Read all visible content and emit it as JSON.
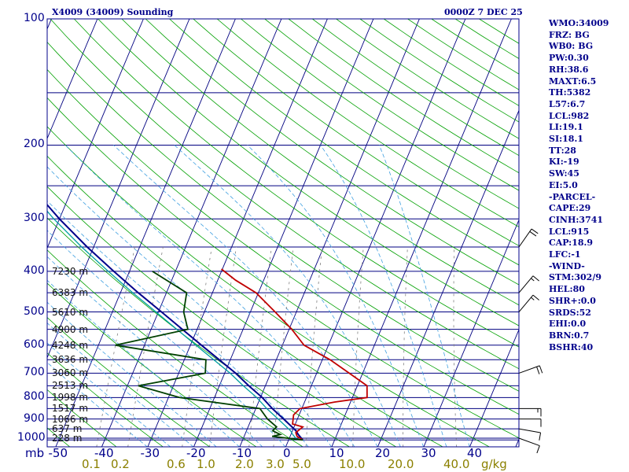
{
  "header": {
    "title": "X4009 (34009) Sounding",
    "datetime": "0000Z  7 DEC 25"
  },
  "indices": [
    "WMO:34009",
    "FRZ: BG",
    "WB0: BG",
    "PW:0.30",
    "RH:38.6",
    "MAXT:6.5",
    "TH:5382",
    "L57:6.7",
    "LCL:982",
    "LI:19.1",
    "SI:18.1",
    "TT:28",
    "KI:-19",
    "SW:45",
    "EI:5.0",
    "-PARCEL-",
    "CAPE:29",
    "CINH:3741",
    "LCL:915",
    "CAP:18.9",
    "LFC:-1",
    "-WIND-",
    "STM:302/9",
    "HEL:80",
    "SHR+:0.0",
    "SRDS:52",
    "EHI:0.0",
    "BRN:0.7",
    "BSHR:40"
  ],
  "chart_data": {
    "type": "line",
    "subtype": "skew-T log-p sounding",
    "x_axis": {
      "label": "mb",
      "ticks": [
        -50,
        -40,
        -30,
        -20,
        -10,
        0,
        10,
        20,
        30,
        40
      ],
      "range": [
        -50,
        50
      ]
    },
    "y_axis": {
      "scale": "log",
      "ticks": [
        100,
        200,
        300,
        400,
        500,
        600,
        700,
        800,
        900,
        1000
      ],
      "range": [
        1000,
        100
      ]
    },
    "mixing_ratio_axis": {
      "unit": "g/kg",
      "ticks": [
        "0.1",
        "0.2",
        "0.6",
        "1.0",
        "2.0",
        "3.0",
        "5.0",
        "10.0",
        "20.0",
        "40.0"
      ]
    },
    "height_labels": [
      {
        "p": 400,
        "text": "7230 m"
      },
      {
        "p": 450,
        "text": "6383 m"
      },
      {
        "p": 500,
        "text": "5610 m"
      },
      {
        "p": 550,
        "text": "4900 m"
      },
      {
        "p": 600,
        "text": "4248 m"
      },
      {
        "p": 650,
        "text": "3636 m"
      },
      {
        "p": 700,
        "text": "3060 m"
      },
      {
        "p": 750,
        "text": "2513 m"
      },
      {
        "p": 800,
        "text": "1998 m"
      },
      {
        "p": 850,
        "text": "1517 m"
      },
      {
        "p": 900,
        "text": "1066 m"
      },
      {
        "p": 950,
        "text": "637 m"
      },
      {
        "p": 1000,
        "text": "228 m"
      }
    ],
    "temperature": [
      [
        1010,
        3.1
      ],
      [
        990,
        1.5
      ],
      [
        970,
        0.9
      ],
      [
        940,
        1.9
      ],
      [
        925,
        -0.6
      ],
      [
        880,
        -1.2
      ],
      [
        850,
        -0.4
      ],
      [
        820,
        6.5
      ],
      [
        800,
        13.2
      ],
      [
        750,
        12.1
      ],
      [
        700,
        7.1
      ],
      [
        650,
        1.7
      ],
      [
        600,
        -5.3
      ],
      [
        550,
        -9.4
      ],
      [
        500,
        -14.6
      ],
      [
        450,
        -20.5
      ],
      [
        420,
        -26.1
      ],
      [
        395,
        -30.2
      ]
    ],
    "dewpoint": [
      [
        1010,
        3.1
      ],
      [
        990,
        -3.9
      ],
      [
        980,
        -2.3
      ],
      [
        960,
        -4.3
      ],
      [
        940,
        -3.8
      ],
      [
        900,
        -6.5
      ],
      [
        850,
        -9.1
      ],
      [
        800,
        -27.6
      ],
      [
        750,
        -37.6
      ],
      [
        700,
        -24.2
      ],
      [
        650,
        -25.3
      ],
      [
        600,
        -46.3
      ],
      [
        550,
        -32.0
      ],
      [
        500,
        -34.5
      ],
      [
        450,
        -35.6
      ],
      [
        400,
        -45.0
      ]
    ],
    "parcel": [
      [
        1010,
        3.1
      ],
      [
        980,
        1.6
      ],
      [
        960,
        0.8
      ],
      [
        900,
        -3.0
      ],
      [
        850,
        -6.4
      ],
      [
        800,
        -9.6
      ],
      [
        750,
        -13.6
      ],
      [
        700,
        -17.6
      ],
      [
        650,
        -22.4
      ],
      [
        600,
        -27.6
      ],
      [
        550,
        -33.2
      ],
      [
        500,
        -39.3
      ],
      [
        450,
        -46.1
      ],
      [
        400,
        -53.4
      ],
      [
        350,
        -61.4
      ],
      [
        300,
        -70.0
      ],
      [
        250,
        -79.3
      ],
      [
        200,
        -89.3
      ],
      [
        150,
        -101.2
      ],
      [
        120,
        -109.0
      ]
    ],
    "wind_barbs": [
      {
        "p": 1000,
        "dir": 290,
        "spd": 10
      },
      {
        "p": 950,
        "dir": 280,
        "spd": 10
      },
      {
        "p": 900,
        "dir": 270,
        "spd": 10
      },
      {
        "p": 850,
        "dir": 270,
        "spd": 15
      },
      {
        "p": 700,
        "dir": 250,
        "spd": 20
      },
      {
        "p": 500,
        "dir": 220,
        "spd": 15
      },
      {
        "p": 450,
        "dir": 220,
        "spd": 15
      },
      {
        "p": 350,
        "dir": 215,
        "spd": 20
      }
    ],
    "colors": {
      "temperature": "#c00000",
      "dewpoint": "#004000",
      "parcel": "#00008b",
      "virtual_parcel": "#00a0a0",
      "isobars": "#000080",
      "isotherms": "#000080",
      "dry_adiabats": "#00a000",
      "moist_adiabats": "#40a0e0",
      "mixing_ratio": "#808080"
    }
  }
}
